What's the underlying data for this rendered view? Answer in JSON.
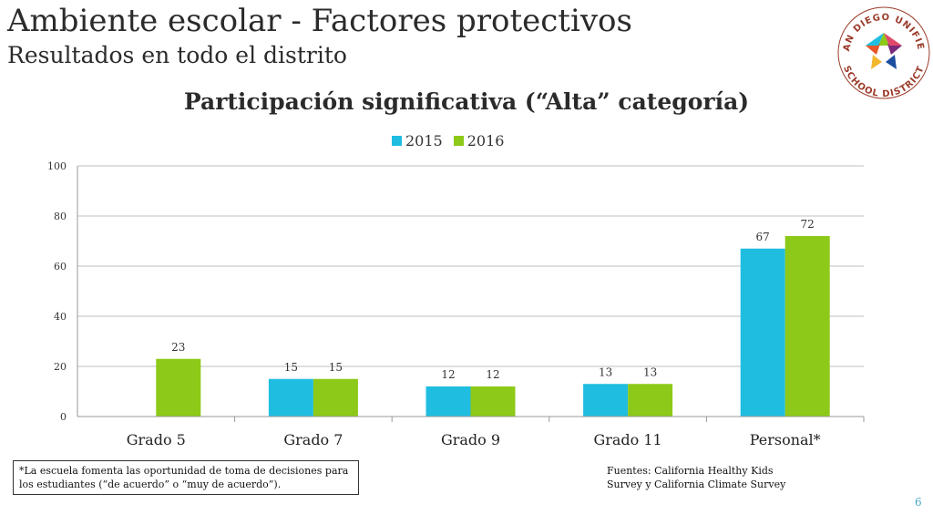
{
  "header": {
    "title": "Ambiente escolar - Factores protectivos",
    "subtitle": "Resultados en todo el distrito"
  },
  "logo": {
    "top_text": "SAN DIEGO UNIFIED",
    "bottom_text": "SCHOOL DISTRICT"
  },
  "chart_data": {
    "type": "bar",
    "title": "Participación significativa (“Alta” categoría)",
    "categories": [
      "Grado 5",
      "Grado 7",
      "Grado 9",
      "Grado 11",
      "Personal*"
    ],
    "series": [
      {
        "name": "2015",
        "color": "#1fbde0",
        "values": [
          null,
          15,
          12,
          13,
          67
        ]
      },
      {
        "name": "2016",
        "color": "#8dc918",
        "values": [
          23,
          15,
          12,
          13,
          72
        ]
      }
    ],
    "ylim": [
      0,
      100
    ],
    "yticks": [
      0,
      20,
      40,
      60,
      80,
      100
    ],
    "grid": true,
    "legend": "top-center",
    "xlabel": "",
    "ylabel": ""
  },
  "footnote": {
    "line1": "*La escuela fomenta las oportunidad de toma de decisiones para",
    "line2": "los estudiantes (“de acuerdo” o “muy de acuerdo”)."
  },
  "sources": {
    "line1": "Fuentes: California Healthy Kids",
    "line2": "Survey y California Climate  Survey"
  },
  "page_number": "6"
}
